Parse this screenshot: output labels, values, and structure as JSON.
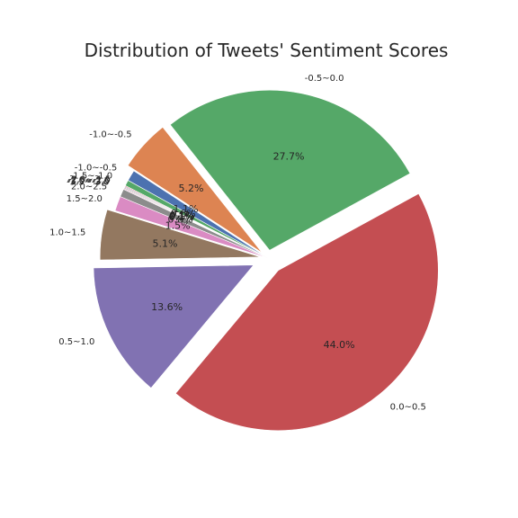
{
  "chart_data": {
    "type": "pie",
    "title": "Distribution of Tweets' Sentiment Scores",
    "start_angle_deg": 147,
    "direction": "counterclockwise",
    "autopct_format": "1 decimal",
    "slices": [
      {
        "label": "-1.0~-0.5",
        "value": 1.1,
        "color": "#4c72b0",
        "explode": 0
      },
      {
        "label": "-1.5~-1.0",
        "value": 0.6,
        "color": "#55a868",
        "explode": 0
      },
      {
        "label": "-2.0~-1.5",
        "value": 0.1,
        "color": "#c44e52",
        "explode": 0
      },
      {
        "label": "-2.5~-2.0",
        "value": 0.1,
        "color": "#8172b2",
        "explode": 0
      },
      {
        "label": "-3.0~-2.5",
        "value": 0.1,
        "color": "#937860",
        "explode": 0
      },
      {
        "label": "-3.5~-3.0",
        "value": 0.1,
        "color": "#da8bc3",
        "explode": 0
      },
      {
        "label": "2.0~2.5",
        "value": 0.8,
        "color": "#8c8c8c",
        "explode": 0
      },
      {
        "label": "1.5~2.0",
        "value": 1.5,
        "color": "#da8bc3",
        "explode": 0
      },
      {
        "label": "1.0~1.5",
        "value": 5.1,
        "color": "#937860",
        "explode": 0.05
      },
      {
        "label": "0.5~1.0",
        "value": 13.7,
        "color": "#8172b2",
        "explode": 0.1
      },
      {
        "label": "0.0~0.5",
        "value": 44.2,
        "color": "#c44e52",
        "explode": 0.1
      },
      {
        "label": "-0.5~0.0",
        "value": 27.8,
        "color": "#55a868",
        "explode": 0.05
      },
      {
        "label": "-1.0~-0.5",
        "value": 5.2,
        "color": "#dd8452",
        "explode": 0.05
      }
    ]
  }
}
